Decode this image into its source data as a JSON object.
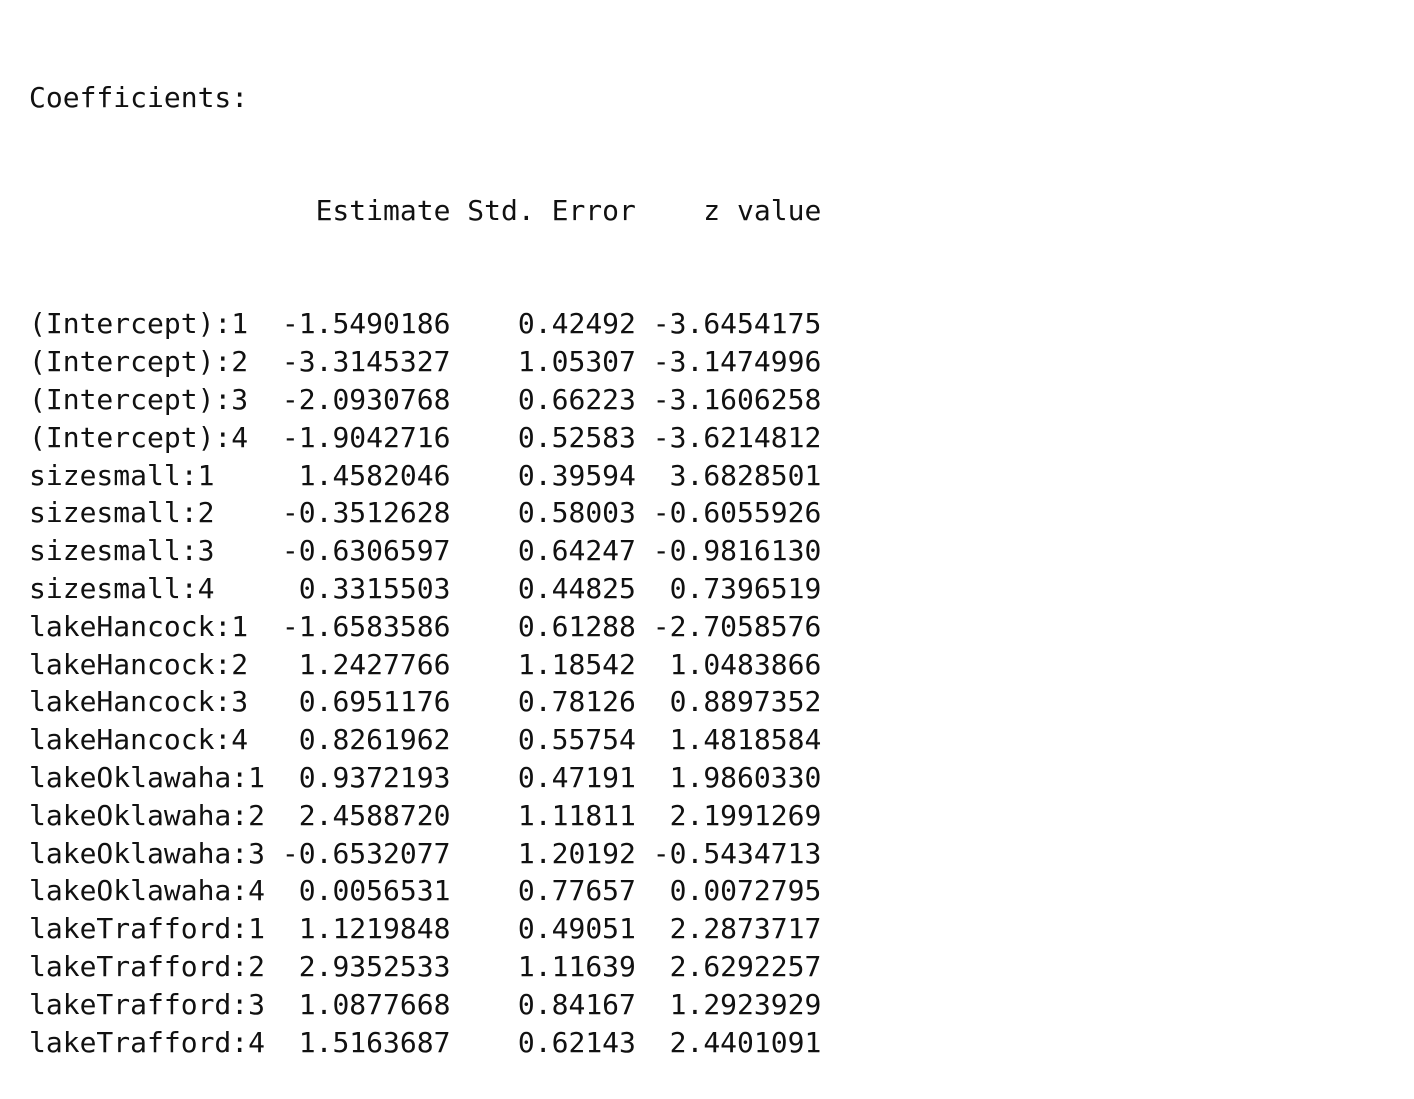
{
  "output": {
    "heading": "Coefficients:",
    "column_header_line": "                 Estimate Std. Error    z value",
    "columns": [
      "Estimate",
      "Std. Error",
      "z value"
    ],
    "rows": [
      {
        "term": "(Intercept):1",
        "estimate": "-1.5490186",
        "std_error": "0.42492",
        "z_value": "-3.6454175"
      },
      {
        "term": "(Intercept):2",
        "estimate": "-3.3145327",
        "std_error": "1.05307",
        "z_value": "-3.1474996"
      },
      {
        "term": "(Intercept):3",
        "estimate": "-2.0930768",
        "std_error": "0.66223",
        "z_value": "-3.1606258"
      },
      {
        "term": "(Intercept):4",
        "estimate": "-1.9042716",
        "std_error": "0.52583",
        "z_value": "-3.6214812"
      },
      {
        "term": "sizesmall:1",
        "estimate": "1.4582046",
        "std_error": "0.39594",
        "z_value": "3.6828501"
      },
      {
        "term": "sizesmall:2",
        "estimate": "-0.3512628",
        "std_error": "0.58003",
        "z_value": "-0.6055926"
      },
      {
        "term": "sizesmall:3",
        "estimate": "-0.6306597",
        "std_error": "0.64247",
        "z_value": "-0.9816130"
      },
      {
        "term": "sizesmall:4",
        "estimate": "0.3315503",
        "std_error": "0.44825",
        "z_value": "0.7396519"
      },
      {
        "term": "lakeHancock:1",
        "estimate": "-1.6583586",
        "std_error": "0.61288",
        "z_value": "-2.7058576"
      },
      {
        "term": "lakeHancock:2",
        "estimate": "1.2427766",
        "std_error": "1.18542",
        "z_value": "1.0483866"
      },
      {
        "term": "lakeHancock:3",
        "estimate": "0.6951176",
        "std_error": "0.78126",
        "z_value": "0.8897352"
      },
      {
        "term": "lakeHancock:4",
        "estimate": "0.8261962",
        "std_error": "0.55754",
        "z_value": "1.4818584"
      },
      {
        "term": "lakeOklawaha:1",
        "estimate": "0.9372193",
        "std_error": "0.47191",
        "z_value": "1.9860330"
      },
      {
        "term": "lakeOklawaha:2",
        "estimate": "2.4588720",
        "std_error": "1.11811",
        "z_value": "2.1991269"
      },
      {
        "term": "lakeOklawaha:3",
        "estimate": "-0.6532077",
        "std_error": "1.20192",
        "z_value": "-0.5434713"
      },
      {
        "term": "lakeOklawaha:4",
        "estimate": "0.0056531",
        "std_error": "0.77657",
        "z_value": "0.0072795"
      },
      {
        "term": "lakeTrafford:1",
        "estimate": "1.1219848",
        "std_error": "0.49051",
        "z_value": "2.2873717"
      },
      {
        "term": "lakeTrafford:2",
        "estimate": "2.9352533",
        "std_error": "1.11639",
        "z_value": "2.6292257"
      },
      {
        "term": "lakeTrafford:3",
        "estimate": "1.0877668",
        "std_error": "0.84167",
        "z_value": "1.2923929"
      },
      {
        "term": "lakeTrafford:4",
        "estimate": "1.5163687",
        "std_error": "0.62143",
        "z_value": "2.4401091"
      }
    ]
  }
}
